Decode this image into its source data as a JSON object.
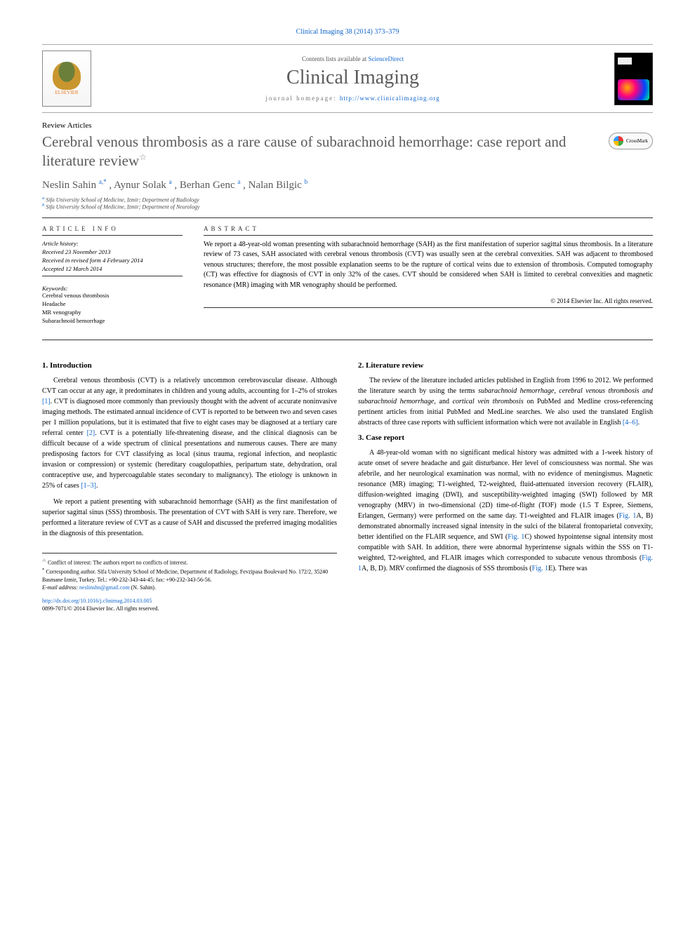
{
  "header": {
    "journal_ref": "Clinical Imaging 38 (2014) 373–379",
    "contents_line_prefix": "Contents lists available at ",
    "contents_link": "ScienceDirect",
    "journal_title": "Clinical Imaging",
    "homepage_prefix": "journal homepage: ",
    "homepage_link": "http://www.clinicalimaging.org",
    "elsevier_label": "ELSEVIER",
    "cover_label": "CLINICAL IMAGING"
  },
  "article": {
    "type": "Review Articles",
    "title": "Cerebral venous thrombosis as a rare cause of subarachnoid hemorrhage: case report and literature review",
    "star": "☆",
    "crossmark": "CrossMark"
  },
  "authors": {
    "list": "Neslin Sahin ",
    "a1_sup": "a,",
    "a1_star": "*",
    "sep1": ", Aynur Solak ",
    "a2_sup": "a",
    "sep2": ", Berhan Genc ",
    "a3_sup": "a",
    "sep3": ", Nalan Bilgic ",
    "a4_sup": "b"
  },
  "affiliations": {
    "a_sup": "a",
    "a_text": " Sifa University School of Medicine, Izmir; Department of Radiology",
    "b_sup": "b",
    "b_text": " Sifa University School of Medicine, Izmir; Department of Neurology"
  },
  "info": {
    "label": "ARTICLE INFO",
    "history_label": "Article history:",
    "history_received": "Received 23 November 2013",
    "history_revised": "Received in revised form 4 February 2014",
    "history_accepted": "Accepted 12 March 2014",
    "keywords_label": "Keywords:",
    "kw1": "Cerebral venous thrombosis",
    "kw2": "Headache",
    "kw3": "MR venography",
    "kw4": "Subarachnoid hemorrhage"
  },
  "abstract": {
    "label": "ABSTRACT",
    "text": "We report a 48-year-old woman presenting with subarachnoid hemorrhage (SAH) as the first manifestation of superior sagittal sinus thrombosis. In a literature review of 73 cases, SAH associated with cerebral venous thrombosis (CVT) was usually seen at the cerebral convexities. SAH was adjacent to thrombosed venous structures; therefore, the most possible explanation seems to be the rupture of cortical veins due to extension of thrombosis. Computed tomography (CT) was effective for diagnosis of CVT in only 32% of the cases. CVT should be considered when SAH is limited to cerebral convexities and magnetic resonance (MR) imaging with MR venography should be performed.",
    "copyright": "© 2014 Elsevier Inc. All rights reserved."
  },
  "sections": {
    "intro_heading": "1. Introduction",
    "intro_p1_a": "Cerebral venous thrombosis (CVT) is a relatively uncommon cerebrovascular disease. Although CVT can occur at any age, it predominates in children and young adults, accounting for 1–2% of strokes ",
    "intro_p1_ref1": "[1]",
    "intro_p1_b": ". CVT is diagnosed more commonly than previously thought with the advent of accurate noninvasive imaging methods. The estimated annual incidence of CVT is reported to be between two and seven cases per 1 million populations, but it is estimated that five to eight cases may be diagnosed at a tertiary care referral center ",
    "intro_p1_ref2": "[2]",
    "intro_p1_c": ". CVT is a potentially life-threatening disease, and the clinical diagnosis can be difficult because of a wide spectrum of clinical presentations and numerous causes. There are many predisposing factors for CVT classifying as local (sinus trauma, regional infection, and neoplastic invasion or compression) or systemic (hereditary coagulopathies, peripartum state, dehydration, oral contraceptive use, and hypercoagulable states secondary to malignancy). The etiology is unknown in 25% of cases ",
    "intro_p1_ref3": "[1–3]",
    "intro_p1_d": ".",
    "intro_p2": "We report a patient presenting with subarachnoid hemorrhage (SAH) as the first manifestation of superior sagittal sinus (SSS) thrombosis. The presentation of CVT with SAH is very rare. Therefore, we performed a literature review of CVT as a cause of SAH and discussed the preferred imaging modalities in the diagnosis of this presentation.",
    "litrev_heading": "2. Literature review",
    "litrev_p1_a": "The review of the literature included articles published in English from 1996 to 2012. We performed the literature search by using the terms ",
    "litrev_p1_i1": "subarachnoid hemorrhage",
    "litrev_p1_b": ", ",
    "litrev_p1_i2": "cerebral venous thrombosis and subarachnoid hemorrhage",
    "litrev_p1_c": ", and ",
    "litrev_p1_i3": "cortical vein thrombosis",
    "litrev_p1_d": " on PubMed and Medline cross-referencing pertinent articles from initial PubMed and MedLine searches. We also used the translated English abstracts of three case reports with sufficient information which were not available in English ",
    "litrev_p1_ref": "[4–6]",
    "litrev_p1_e": ".",
    "case_heading": "3. Case report",
    "case_p1_a": "A 48-year-old woman with no significant medical history was admitted with a 1-week history of acute onset of severe headache and gait disturbance. Her level of consciousness was normal. She was afebrile, and her neurological examination was normal, with no evidence of meningismus. Magnetic resonance (MR) imaging; T1-weighted, T2-weighted, fluid-attenuated inversion recovery (FLAIR), diffusion-weighted imaging (DWI), and susceptibility-weighted imaging (SWI) followed by MR venography (MRV) in two-dimensional (2D) time-of-flight (TOF) mode (1.5 T Espree, Siemens, Erlangen, Germany) were performed on the same day. T1-weighted and FLAIR images (",
    "case_p1_fig1": "Fig. 1",
    "case_p1_b": "A, B) demonstrated abnormally increased signal intensity in the sulci of the bilateral frontoparietal convexity, better identified on the FLAIR sequence, and SWI (",
    "case_p1_fig2": "Fig. 1",
    "case_p1_c": "C) showed hypointense signal intensity most compatible with SAH. In addition, there were abnormal hyperintense signals within the SSS on T1-weighted, T2-weighted, and FLAIR images which corresponded to subacute venous thrombosis (",
    "case_p1_fig3": "Fig. 1",
    "case_p1_d": "A, B, D). MRV confirmed the diagnosis of SSS thrombosis (",
    "case_p1_fig4": "Fig. 1",
    "case_p1_e": "E). There was"
  },
  "footnotes": {
    "conflict_star": "☆",
    "conflict": "Conflict of interest: The authors report no conflicts of interest.",
    "corr_star": "*",
    "corr": "Corresponding author. Sifa University School of Medicine, Department of Radiology, Fevzipasa Boulevard No. 172/2, 35240 Basmane Izmir, Turkey. Tel.: +90-232-343-44-45; fax: +90-232-343-56-56.",
    "email_label": "E-mail address: ",
    "email": "neslinshn@gmail.com",
    "email_suffix": " (N. Sahin).",
    "doi": "http://dx.doi.org/10.1016/j.clinimag.2014.03.005",
    "issn": "0899-7071/© 2014 Elsevier Inc. All rights reserved."
  },
  "colors": {
    "link": "#1166cc",
    "title_gray": "#5b5b5b",
    "elsevier_orange": "#e67a22"
  }
}
